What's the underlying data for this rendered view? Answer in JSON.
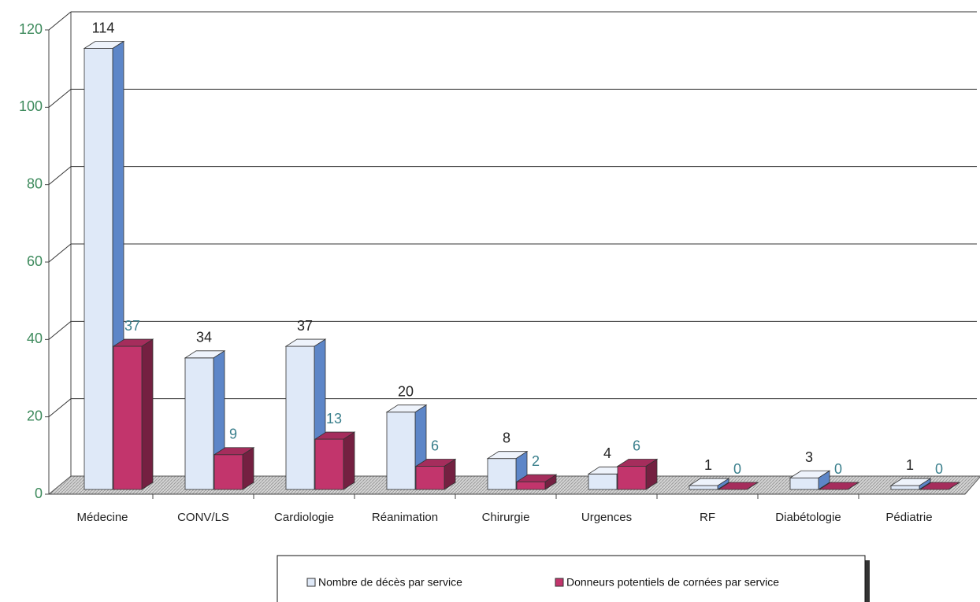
{
  "chart_data": {
    "type": "bar3d",
    "categories": [
      "Médecine",
      "CONV/LS",
      "Cardiologie",
      "Réanimation",
      "Chirurgie",
      "Urgences",
      "RF",
      "Diabétologie",
      "Pédiatrie"
    ],
    "series": [
      {
        "name": "Nombre de décès par service",
        "color": "#dfe9f8",
        "values": [
          114,
          34,
          37,
          20,
          8,
          4,
          1,
          3,
          1
        ]
      },
      {
        "name": "Donneurs potentiels de cornées par service",
        "color": "#c2356c",
        "values": [
          37,
          9,
          13,
          6,
          2,
          6,
          0,
          0,
          0
        ]
      }
    ],
    "ylim": [
      0,
      120
    ],
    "yticks": [
      0,
      20,
      40,
      60,
      80,
      100,
      120
    ],
    "grid": true
  }
}
